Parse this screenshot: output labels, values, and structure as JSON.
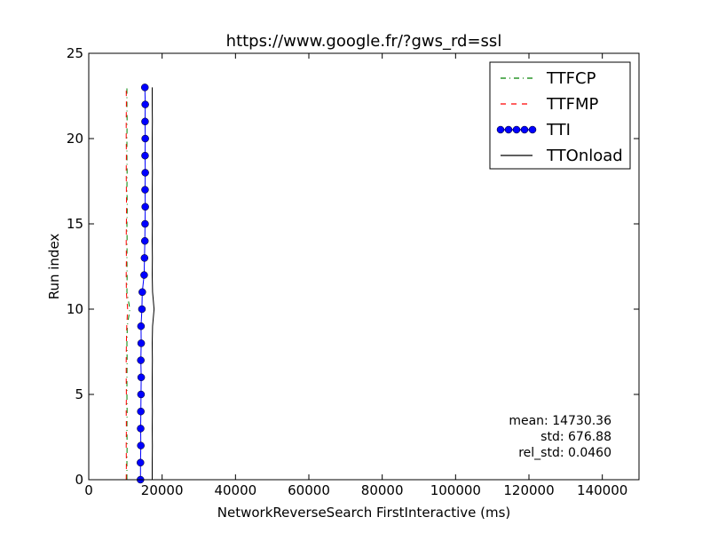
{
  "chart_data": {
    "type": "line",
    "title": "https://www.google.fr/?gws_rd=ssl",
    "xlabel": "NetworkReverseSearch FirstInteractive (ms)",
    "ylabel": "Run index",
    "xlim": [
      0,
      150000
    ],
    "ylim": [
      0,
      25
    ],
    "xticks": [
      0,
      20000,
      40000,
      60000,
      80000,
      100000,
      120000,
      140000
    ],
    "xtick_labels": [
      "0",
      "20000",
      "40000",
      "60000",
      "80000",
      "100000",
      "120000",
      "140000"
    ],
    "yticks": [
      0,
      5,
      10,
      15,
      20,
      25
    ],
    "ytick_labels": [
      "0",
      "5",
      "10",
      "15",
      "20",
      "25"
    ],
    "grid": false,
    "legend_position": "top-right",
    "y": [
      0,
      1,
      2,
      3,
      4,
      5,
      6,
      7,
      8,
      9,
      10,
      11,
      12,
      13,
      14,
      15,
      16,
      17,
      18,
      19,
      20,
      21,
      22,
      23
    ],
    "series": [
      {
        "name": "TTFCP",
        "color": "#008000",
        "style": "dashdot",
        "x": [
          10400,
          10400,
          10450,
          10400,
          10450,
          10400,
          10400,
          10450,
          10400,
          10500,
          11200,
          10400,
          10450,
          10400,
          10450,
          10400,
          10500,
          10400,
          10450,
          10400,
          10400,
          10450,
          10400,
          10400
        ]
      },
      {
        "name": "TTFMP",
        "color": "#ff0000",
        "style": "dashed",
        "x": [
          10200,
          10250,
          10200,
          10250,
          10200,
          10250,
          10200,
          10200,
          10250,
          10350,
          10600,
          10250,
          10200,
          10250,
          10200,
          10250,
          10300,
          10250,
          10200,
          10250,
          10200,
          10200,
          10250,
          10200
        ]
      },
      {
        "name": "TTI",
        "color": "#0000ff",
        "style": "solid-markers",
        "x": [
          14100,
          14100,
          14200,
          14150,
          14200,
          14250,
          14300,
          14200,
          14300,
          14250,
          14500,
          14600,
          15100,
          15200,
          15300,
          15350,
          15400,
          15350,
          15400,
          15350,
          15400,
          15350,
          15400,
          15300
        ]
      },
      {
        "name": "TTOnload",
        "color": "#000000",
        "style": "solid",
        "x": [
          17300,
          17300,
          17350,
          17300,
          17350,
          17300,
          17300,
          17350,
          17300,
          17400,
          17800,
          17400,
          17300,
          17350,
          17300,
          17350,
          17300,
          17300,
          17350,
          17300,
          17300,
          17350,
          17300,
          17300
        ]
      }
    ],
    "annotations": {
      "mean": "mean: 14730.36",
      "std": "std: 676.88",
      "rel_std": "rel_std: 0.0460"
    }
  }
}
